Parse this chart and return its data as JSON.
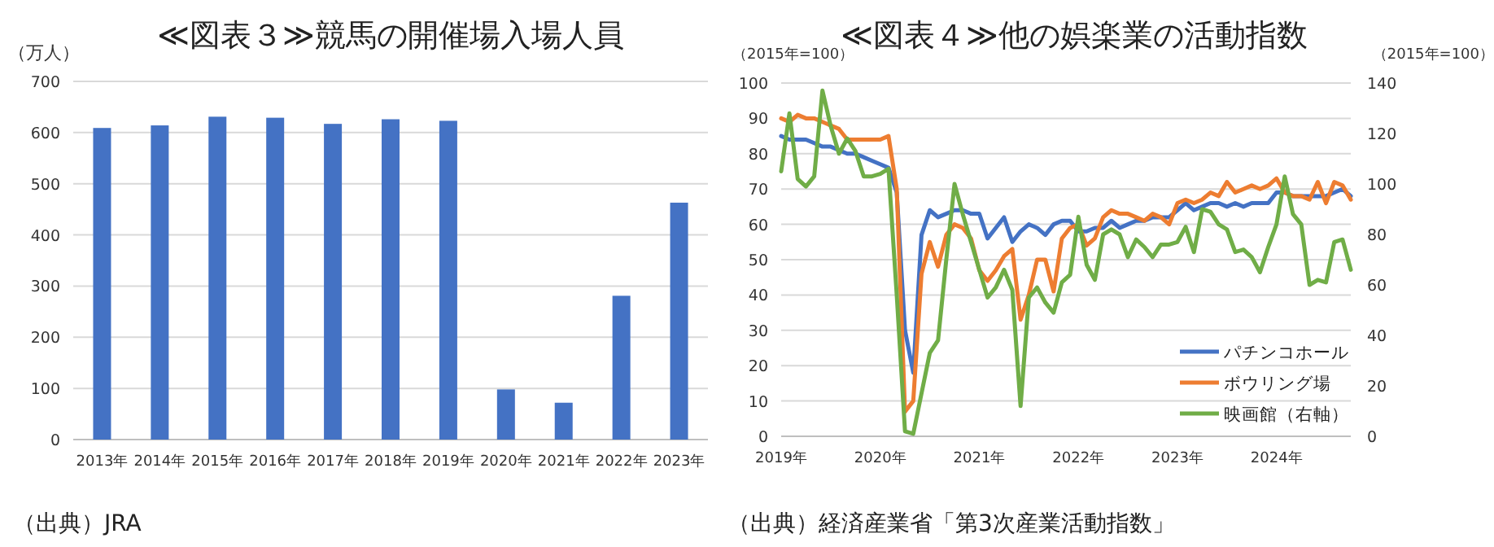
{
  "chart_data": [
    {
      "type": "bar",
      "title": "≪図表３≫競馬の開催場入場人員",
      "ylabel": "（万人）",
      "categories": [
        "2013年",
        "2014年",
        "2015年",
        "2016年",
        "2017年",
        "2018年",
        "2019年",
        "2020年",
        "2021年",
        "2022年",
        "2023年"
      ],
      "series": [
        {
          "color": "#4472c4",
          "values": [
            609,
            614,
            631,
            629,
            617,
            626,
            623,
            98,
            72,
            281,
            463
          ]
        }
      ],
      "ylim": [
        0,
        700
      ],
      "yticks": [
        0,
        100,
        200,
        300,
        400,
        500,
        600,
        700
      ],
      "grid": "y",
      "legend": false,
      "annotations": [
        "（出典）JRA"
      ]
    },
    {
      "type": "line",
      "title": "≪図表４≫他の娯楽業の活動指数",
      "ylabel": "（2015年=100）",
      "y2label": "（2015年=100）",
      "x": [
        "2019-01",
        "2019-02",
        "2019-03",
        "2019-04",
        "2019-05",
        "2019-06",
        "2019-07",
        "2019-08",
        "2019-09",
        "2019-10",
        "2019-11",
        "2019-12",
        "2020-01",
        "2020-02",
        "2020-03",
        "2020-04",
        "2020-05",
        "2020-06",
        "2020-07",
        "2020-08",
        "2020-09",
        "2020-10",
        "2020-11",
        "2020-12",
        "2021-01",
        "2021-02",
        "2021-03",
        "2021-04",
        "2021-05",
        "2021-06",
        "2021-07",
        "2021-08",
        "2021-09",
        "2021-10",
        "2021-11",
        "2021-12",
        "2022-01",
        "2022-02",
        "2022-03",
        "2022-04",
        "2022-05",
        "2022-06",
        "2022-07",
        "2022-08",
        "2022-09",
        "2022-10",
        "2022-11",
        "2022-12",
        "2023-01",
        "2023-02",
        "2023-03",
        "2023-04",
        "2023-05",
        "2023-06",
        "2023-07",
        "2023-08",
        "2023-09",
        "2023-10",
        "2023-11",
        "2023-12",
        "2024-01",
        "2024-02",
        "2024-03",
        "2024-04",
        "2024-05",
        "2024-06",
        "2024-07",
        "2024-08",
        "2024-09",
        "2024-10"
      ],
      "series": [
        {
          "name": "パチンコホール",
          "color": "#4472c4",
          "values": [
            85,
            84,
            84,
            84,
            83,
            82,
            82,
            81,
            80,
            80,
            79,
            78,
            77,
            76,
            69,
            30,
            18,
            57,
            64,
            62,
            63,
            64,
            64,
            63,
            63,
            56,
            59,
            62,
            55,
            58,
            60,
            59,
            57,
            60,
            61,
            61,
            58,
            58,
            59,
            59,
            61,
            59,
            60,
            61,
            61,
            62,
            62,
            62,
            64,
            66,
            64,
            65,
            66,
            66,
            65,
            66,
            65,
            66,
            66,
            66,
            69,
            69,
            68,
            68,
            68,
            68,
            68,
            69,
            70,
            68
          ]
        },
        {
          "name": "ボウリング場",
          "color": "#ed7d31",
          "values": [
            90,
            89,
            91,
            90,
            90,
            89,
            88,
            87,
            84,
            84,
            84,
            84,
            84,
            85,
            70,
            7,
            10,
            46,
            55,
            48,
            57,
            60,
            59,
            56,
            47,
            44,
            47,
            51,
            53,
            33,
            40,
            50,
            50,
            41,
            56,
            59,
            60,
            54,
            56,
            62,
            64,
            63,
            63,
            62,
            61,
            63,
            62,
            60,
            66,
            67,
            66,
            67,
            69,
            68,
            72,
            69,
            70,
            71,
            70,
            71,
            73,
            69,
            68,
            68,
            67,
            72,
            66,
            72,
            71,
            67
          ]
        },
        {
          "name": "映画館（右軸）",
          "color": "#70ad47",
          "axis": "y2",
          "values": [
            105,
            128,
            102,
            99,
            103,
            137,
            123,
            112,
            118,
            113,
            103,
            103,
            104,
            106,
            56,
            2,
            1,
            17,
            33,
            38,
            70,
            100,
            88,
            77,
            66,
            55,
            59,
            66,
            58,
            12,
            55,
            59,
            53,
            49,
            61,
            64,
            87,
            68,
            62,
            80,
            82,
            80,
            71,
            78,
            75,
            71,
            76,
            76,
            77,
            83,
            73,
            90,
            89,
            84,
            82,
            73,
            74,
            71,
            65,
            75,
            84,
            103,
            88,
            84,
            60,
            62,
            61,
            77,
            78,
            66
          ]
        }
      ],
      "xlim": [
        "2019-01",
        "2024-10"
      ],
      "xticks": [
        {
          "value": "2019-01",
          "label": "2019年"
        },
        {
          "value": "2020-01",
          "label": "2020年"
        },
        {
          "value": "2021-01",
          "label": "2021年"
        },
        {
          "value": "2022-01",
          "label": "2022年"
        },
        {
          "value": "2023-01",
          "label": "2023年"
        },
        {
          "value": "2024-01",
          "label": "2024年"
        }
      ],
      "ylim": [
        0,
        100
      ],
      "yticks": [
        0,
        10,
        20,
        30,
        40,
        50,
        60,
        70,
        80,
        90,
        100
      ],
      "y2lim": [
        0,
        140
      ],
      "y2ticks": [
        0,
        20,
        40,
        60,
        80,
        100,
        120,
        140
      ],
      "grid": "y",
      "legend": "bottom right",
      "marker": "none",
      "line_style": "solid",
      "annotations": [
        "（出典）経済産業省「第3次産業活動指数」"
      ]
    }
  ]
}
